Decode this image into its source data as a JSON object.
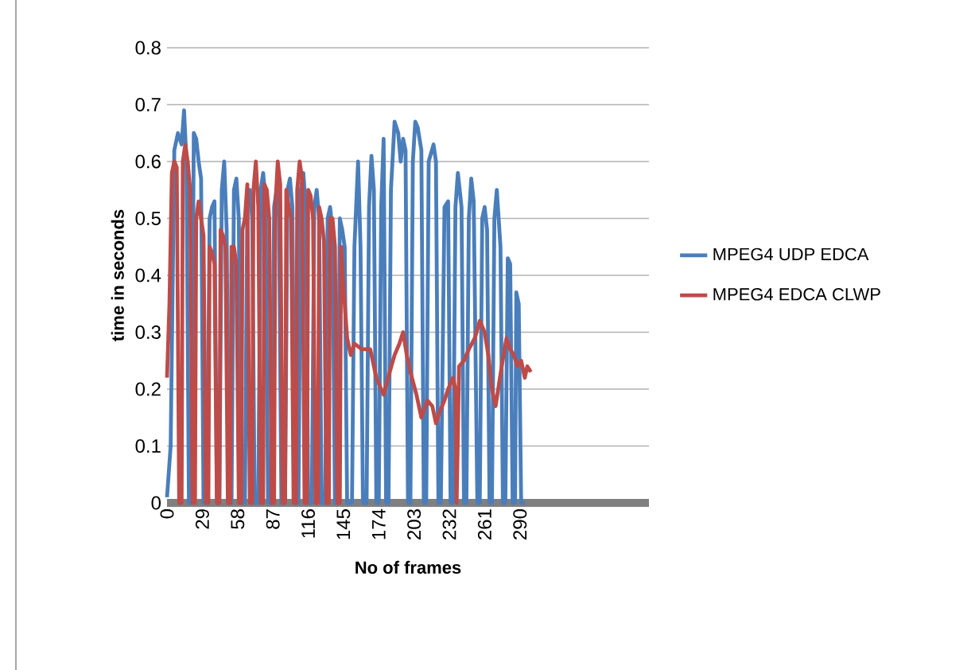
{
  "chart_data": {
    "type": "line",
    "xlabel": "No of frames",
    "ylabel": "time in seconds",
    "xlim": [
      0,
      396
    ],
    "xticks": [
      0,
      29,
      58,
      87,
      116,
      145,
      174,
      203,
      232,
      261,
      290
    ],
    "ylim": [
      0,
      0.8
    ],
    "yticks": [
      0,
      0.1,
      0.2,
      0.3,
      0.4,
      0.5,
      0.6,
      0.7,
      0.8
    ],
    "grid": "y",
    "legend": "right",
    "marker": "none",
    "line_style": "solid",
    "series": [
      {
        "name": "MPEG4 UDP EDCA",
        "color": "#4a7ebb",
        "x": [
          0,
          3,
          6,
          9,
          12,
          14,
          16,
          18,
          20,
          22,
          24,
          26,
          28,
          30,
          33,
          35,
          37,
          39,
          41,
          43,
          45,
          47,
          49,
          51,
          53,
          55,
          57,
          59,
          61,
          64,
          66,
          68,
          70,
          72,
          75,
          77,
          79,
          81,
          83,
          86,
          88,
          90,
          92,
          94,
          97,
          99,
          101,
          103,
          105,
          108,
          110,
          112,
          114,
          116,
          119,
          121,
          123,
          125,
          127,
          130,
          132,
          134,
          136,
          138,
          140,
          142,
          144,
          146,
          148,
          152,
          154,
          157,
          159,
          161,
          164,
          166,
          168,
          170,
          172,
          174,
          176,
          178,
          180,
          182,
          184,
          187,
          190,
          192,
          194,
          196,
          198,
          200,
          202,
          204,
          206,
          209,
          211,
          213,
          215,
          219,
          221,
          223,
          225,
          228,
          231,
          233,
          235,
          237,
          239,
          242,
          244,
          246,
          248,
          250,
          252,
          255,
          257,
          259,
          261,
          263,
          265,
          267,
          269,
          271,
          274,
          276,
          278,
          280,
          282,
          284,
          286,
          287,
          289,
          291,
          294
        ],
        "values": [
          0.01,
          0.1,
          0.62,
          0.65,
          0.63,
          0.69,
          0.6,
          0,
          0,
          0.65,
          0.64,
          0.6,
          0.57,
          0,
          0,
          0.5,
          0.52,
          0.53,
          0,
          0,
          0.55,
          0.6,
          0.48,
          0,
          0,
          0.55,
          0.57,
          0.5,
          0,
          0,
          0.52,
          0.55,
          0.5,
          0,
          0,
          0.55,
          0.58,
          0.53,
          0,
          0,
          0.52,
          0.55,
          0.5,
          0,
          0,
          0.55,
          0.57,
          0.52,
          0,
          0,
          0.55,
          0.58,
          0.52,
          0,
          0,
          0.52,
          0.55,
          0.5,
          0,
          0,
          0.5,
          0.52,
          0.48,
          0,
          0,
          0.5,
          0.48,
          0.45,
          0,
          0,
          0.45,
          0.6,
          0.45,
          0,
          0,
          0.52,
          0.61,
          0.55,
          0,
          0,
          0.52,
          0.64,
          0,
          0,
          0.55,
          0.67,
          0.65,
          0.6,
          0.64,
          0.62,
          0,
          0,
          0.6,
          0.67,
          0.66,
          0.62,
          0,
          0,
          0.6,
          0.63,
          0.6,
          0,
          0,
          0.52,
          0.53,
          0,
          0,
          0.52,
          0.58,
          0.52,
          0,
          0,
          0.5,
          0.57,
          0.53,
          0,
          0,
          0.5,
          0.52,
          0.48,
          0,
          0,
          0.5,
          0.55,
          0.45,
          0,
          0,
          0.43,
          0.42,
          0,
          0,
          0.37,
          0.35,
          0,
          0
        ]
      },
      {
        "name": "MPEG4 EDCA CLWP",
        "color": "#be4b48",
        "x": [
          0,
          2,
          4,
          6,
          8,
          10,
          12,
          13,
          15,
          17,
          19,
          21,
          23,
          24,
          26,
          28,
          30,
          32,
          34,
          35,
          37,
          39,
          41,
          43,
          44,
          46,
          48,
          50,
          52,
          53,
          55,
          57,
          59,
          61,
          62,
          64,
          66,
          68,
          70,
          71,
          73,
          75,
          77,
          79,
          80,
          82,
          84,
          86,
          88,
          89,
          91,
          93,
          95,
          97,
          98,
          100,
          102,
          104,
          106,
          107,
          109,
          111,
          113,
          115,
          116,
          118,
          120,
          122,
          124,
          125,
          127,
          129,
          131,
          133,
          134,
          136,
          138,
          140,
          142,
          143,
          145,
          148,
          151,
          154,
          160,
          167,
          172,
          178,
          183,
          187,
          191,
          194,
          197,
          200,
          205,
          209,
          214,
          218,
          221,
          224,
          228,
          231,
          235,
          237,
          238,
          240,
          244,
          248,
          253,
          257,
          261,
          264,
          267,
          270,
          275,
          279,
          282,
          285,
          288,
          291,
          294,
          296,
          299
        ],
        "values": [
          0.22,
          0.35,
          0.58,
          0.6,
          0.59,
          0,
          0,
          0.6,
          0.63,
          0.6,
          0.55,
          0,
          0,
          0.5,
          0.53,
          0.5,
          0.47,
          0,
          0,
          0.45,
          0.44,
          0.42,
          0,
          0,
          0.48,
          0.47,
          0.45,
          0,
          0,
          0.45,
          0.45,
          0.42,
          0,
          0,
          0.48,
          0.5,
          0.56,
          0,
          0,
          0.55,
          0.6,
          0.52,
          0,
          0,
          0.56,
          0.55,
          0.5,
          0,
          0,
          0.52,
          0.6,
          0.56,
          0,
          0,
          0.55,
          0.52,
          0.5,
          0,
          0,
          0.55,
          0.6,
          0.57,
          0,
          0,
          0.55,
          0.54,
          0.5,
          0,
          0,
          0.52,
          0.5,
          0.46,
          0,
          0,
          0.5,
          0.5,
          0.45,
          0,
          0,
          0.45,
          0.38,
          0.29,
          0.26,
          0.28,
          0.27,
          0.27,
          0.22,
          0.19,
          0.23,
          0.26,
          0.28,
          0.3,
          0.26,
          0.23,
          0.19,
          0.15,
          0.18,
          0.17,
          0.14,
          0.16,
          0.18,
          0.2,
          0.22,
          0.2,
          0,
          0.24,
          0.25,
          0.27,
          0.29,
          0.32,
          0.3,
          0.26,
          0.2,
          0.17,
          0.24,
          0.29,
          0.27,
          0.26,
          0.24,
          0.25,
          0.22,
          0.24,
          0.23
        ]
      }
    ]
  }
}
